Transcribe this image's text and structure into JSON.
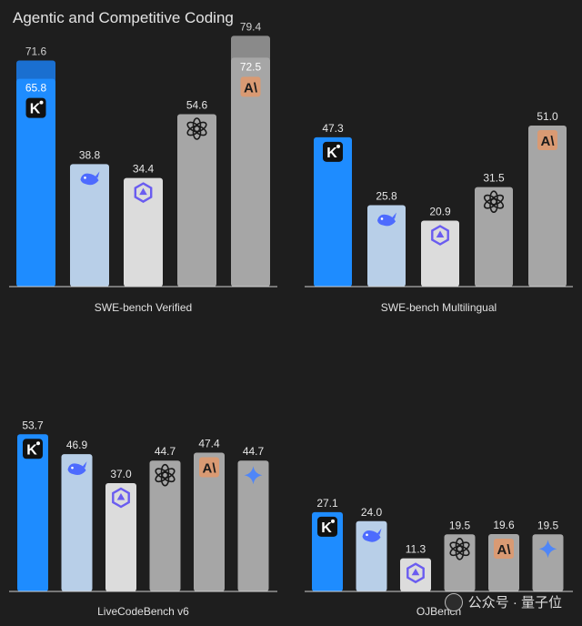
{
  "title": "Agentic and Competitive Coding",
  "watermark": "公众号 · 量子位",
  "colors": {
    "kimi": "#1e8cff",
    "kimi_top": "#1a6fd0",
    "deepseek": "#b8cfe8",
    "qwen": "#dcdcdc",
    "openai": "#a6a6a6",
    "anthropic": "#a6a6a6",
    "gemini": "#a6a6a6",
    "extended": "#8a8a8a",
    "axis": "#d0d0d0",
    "background": "#1e1e1e"
  },
  "chart_data": [
    {
      "type": "bar",
      "xlabel": "SWE-bench Verified",
      "ylim": [
        0,
        85
      ],
      "bars": [
        {
          "model": "kimi",
          "icon": "kimi-logo-icon",
          "value": 65.8,
          "extended_value": 71.6
        },
        {
          "model": "deepseek",
          "icon": "deepseek-whale-icon",
          "value": 38.8
        },
        {
          "model": "qwen",
          "icon": "qwen-logo-icon",
          "value": 34.4
        },
        {
          "model": "openai",
          "icon": "openai-logo-icon",
          "value": 54.6
        },
        {
          "model": "anthropic",
          "icon": "anthropic-logo-icon",
          "value": 72.5,
          "extended_value": 79.4
        }
      ]
    },
    {
      "type": "bar",
      "xlabel": "SWE-bench Multilingual",
      "ylim": [
        0,
        85
      ],
      "bars": [
        {
          "model": "kimi",
          "icon": "kimi-logo-icon",
          "value": 47.3
        },
        {
          "model": "deepseek",
          "icon": "deepseek-whale-icon",
          "value": 25.8
        },
        {
          "model": "qwen",
          "icon": "qwen-logo-icon",
          "value": 20.9
        },
        {
          "model": "openai",
          "icon": "openai-logo-icon",
          "value": 31.5
        },
        {
          "model": "anthropic",
          "icon": "anthropic-logo-icon",
          "value": 51.0
        }
      ]
    },
    {
      "type": "bar",
      "xlabel": "LiveCodeBench v6",
      "ylim": [
        0,
        60
      ],
      "bars": [
        {
          "model": "kimi",
          "icon": "kimi-logo-icon",
          "value": 53.7
        },
        {
          "model": "deepseek",
          "icon": "deepseek-whale-icon",
          "value": 46.9
        },
        {
          "model": "qwen",
          "icon": "qwen-logo-icon",
          "value": 37.0
        },
        {
          "model": "openai",
          "icon": "openai-logo-icon",
          "value": 44.7
        },
        {
          "model": "anthropic",
          "icon": "anthropic-logo-icon",
          "value": 47.4
        },
        {
          "model": "gemini",
          "icon": "gemini-logo-icon",
          "value": 44.7
        }
      ]
    },
    {
      "type": "bar",
      "xlabel": "OJBench",
      "ylim": [
        0,
        60
      ],
      "bars": [
        {
          "model": "kimi",
          "icon": "kimi-logo-icon",
          "value": 27.1
        },
        {
          "model": "deepseek",
          "icon": "deepseek-whale-icon",
          "value": 24.0
        },
        {
          "model": "qwen",
          "icon": "qwen-logo-icon",
          "value": 11.3
        },
        {
          "model": "openai",
          "icon": "openai-logo-icon",
          "value": 19.5
        },
        {
          "model": "anthropic",
          "icon": "anthropic-logo-icon",
          "value": 19.6
        },
        {
          "model": "gemini",
          "icon": "gemini-logo-icon",
          "value": 19.5
        }
      ]
    }
  ]
}
